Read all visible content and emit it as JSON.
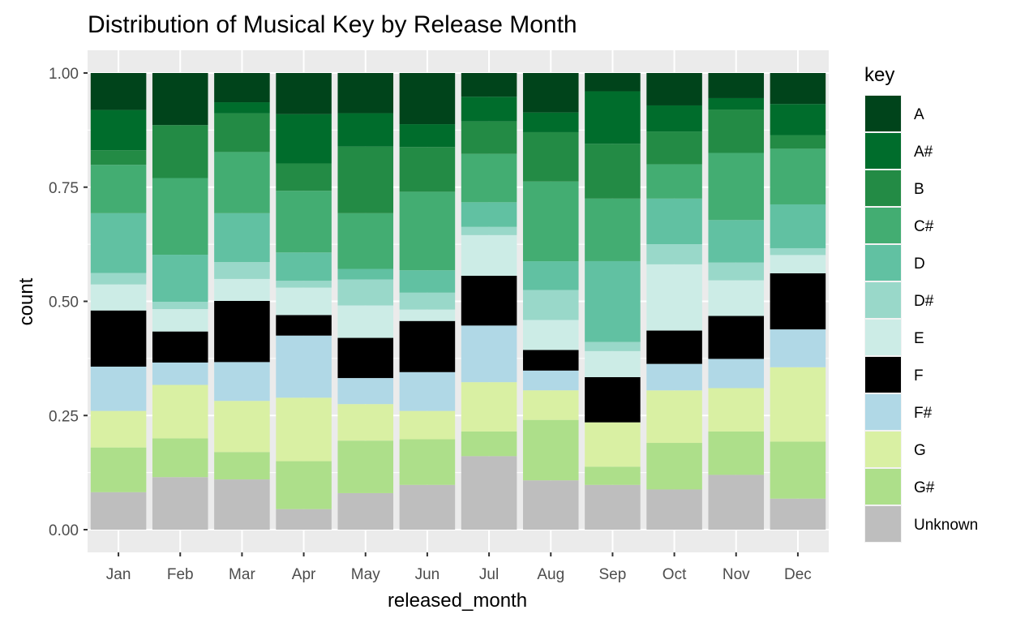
{
  "chart_data": {
    "type": "bar",
    "stacked": "fill",
    "title": "Distribution of Musical Key by Release Month",
    "xlabel": "released_month",
    "ylabel": "count",
    "ylim": [
      0,
      1
    ],
    "yticks": [
      "0.00",
      "0.25",
      "0.50",
      "0.75",
      "1.00"
    ],
    "categories": [
      "Jan",
      "Feb",
      "Mar",
      "Apr",
      "May",
      "Jun",
      "Jul",
      "Aug",
      "Sep",
      "Oct",
      "Nov",
      "Dec"
    ],
    "legend": {
      "title": "key",
      "position": "right"
    },
    "series": [
      {
        "name": "Unknown",
        "color": "#bebebe",
        "values": [
          0.082,
          0.115,
          0.11,
          0.045,
          0.08,
          0.098,
          0.161,
          0.115,
          0.098,
          0.088,
          0.12,
          0.068
        ]
      },
      {
        "name": "G#",
        "color": "#addf8a",
        "values": [
          0.098,
          0.085,
          0.06,
          0.105,
          0.115,
          0.1,
          0.054,
          0.141,
          0.04,
          0.102,
          0.095,
          0.125
        ]
      },
      {
        "name": "G",
        "color": "#d9f0a3",
        "values": [
          0.08,
          0.117,
          0.112,
          0.139,
          0.08,
          0.062,
          0.108,
          0.069,
          0.097,
          0.115,
          0.095,
          0.163
        ]
      },
      {
        "name": "F#",
        "color": "#b0d8e6",
        "values": [
          0.097,
          0.049,
          0.085,
          0.136,
          0.057,
          0.085,
          0.124,
          0.046,
          0.0,
          0.058,
          0.064,
          0.083
        ]
      },
      {
        "name": "F",
        "color": "#000000",
        "values": [
          0.123,
          0.068,
          0.134,
          0.045,
          0.088,
          0.112,
          0.109,
          0.048,
          0.099,
          0.073,
          0.094,
          0.123
        ]
      },
      {
        "name": "E",
        "color": "#ccece6",
        "values": [
          0.057,
          0.049,
          0.048,
          0.06,
          0.071,
          0.025,
          0.089,
          0.07,
          0.057,
          0.145,
          0.078,
          0.04
        ]
      },
      {
        "name": "D#",
        "color": "#99d8c9",
        "values": [
          0.025,
          0.016,
          0.037,
          0.015,
          0.057,
          0.037,
          0.018,
          0.07,
          0.02,
          0.044,
          0.039,
          0.015
        ]
      },
      {
        "name": "D",
        "color": "#61c1a2",
        "values": [
          0.131,
          0.103,
          0.107,
          0.062,
          0.023,
          0.049,
          0.054,
          0.067,
          0.177,
          0.1,
          0.093,
          0.096
        ]
      },
      {
        "name": "C#",
        "color": "#43ad72",
        "values": [
          0.106,
          0.168,
          0.134,
          0.135,
          0.122,
          0.172,
          0.106,
          0.186,
          0.137,
          0.075,
          0.147,
          0.122
        ]
      },
      {
        "name": "B",
        "color": "#238b45",
        "values": [
          0.032,
          0.116,
          0.085,
          0.06,
          0.146,
          0.098,
          0.071,
          0.115,
          0.12,
          0.072,
          0.095,
          0.03
        ]
      },
      {
        "name": "A#",
        "color": "#006d2c",
        "values": [
          0.088,
          0.0,
          0.024,
          0.108,
          0.073,
          0.05,
          0.054,
          0.046,
          0.115,
          0.057,
          0.025,
          0.068
        ]
      },
      {
        "name": "A",
        "color": "#00441b",
        "values": [
          0.081,
          0.114,
          0.064,
          0.09,
          0.088,
          0.112,
          0.052,
          0.092,
          0.04,
          0.071,
          0.055,
          0.068
        ]
      }
    ]
  }
}
